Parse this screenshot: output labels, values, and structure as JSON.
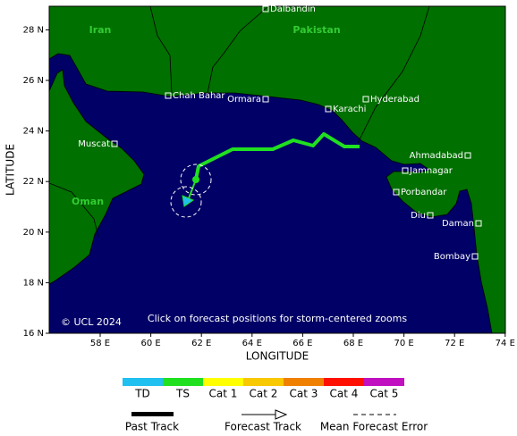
{
  "map": {
    "countries": [
      "Iran",
      "Pakistan",
      "Oman"
    ],
    "cities": [
      "Dalbandin",
      "Chah Bahar",
      "Ormara",
      "Karachi",
      "Hyderabad",
      "Muscat",
      "Ahmadabad",
      "Jamnagar",
      "Porbandar",
      "Diu",
      "Daman",
      "Bombay"
    ],
    "copyright": "© UCL 2024",
    "note": "Click on forecast positions for storm-centered zooms",
    "lat_ticks": [
      "16 N",
      "18 N",
      "20 N",
      "22 N",
      "24 N",
      "26 N",
      "28 N"
    ],
    "lon_ticks": [
      "58 E",
      "60 E",
      "62 E",
      "64 E",
      "66 E",
      "68 E",
      "70 E",
      "72 E",
      "74 E"
    ],
    "y_axis_label": "LATITUDE",
    "x_axis_label": "LONGITUDE"
  },
  "legend": {
    "categories": [
      {
        "label": "TD",
        "color": "#20c0f0"
      },
      {
        "label": "TS",
        "color": "#20e020"
      },
      {
        "label": "Cat 1",
        "color": "#ffff00"
      },
      {
        "label": "Cat 2",
        "color": "#f8c800"
      },
      {
        "label": "Cat 3",
        "color": "#f08000"
      },
      {
        "label": "Cat 4",
        "color": "#ff1000"
      },
      {
        "label": "Cat 5",
        "color": "#c010c0"
      }
    ],
    "past_track": "Past Track",
    "forecast_track": "Forecast Track",
    "error": "Mean Forecast Error"
  }
}
